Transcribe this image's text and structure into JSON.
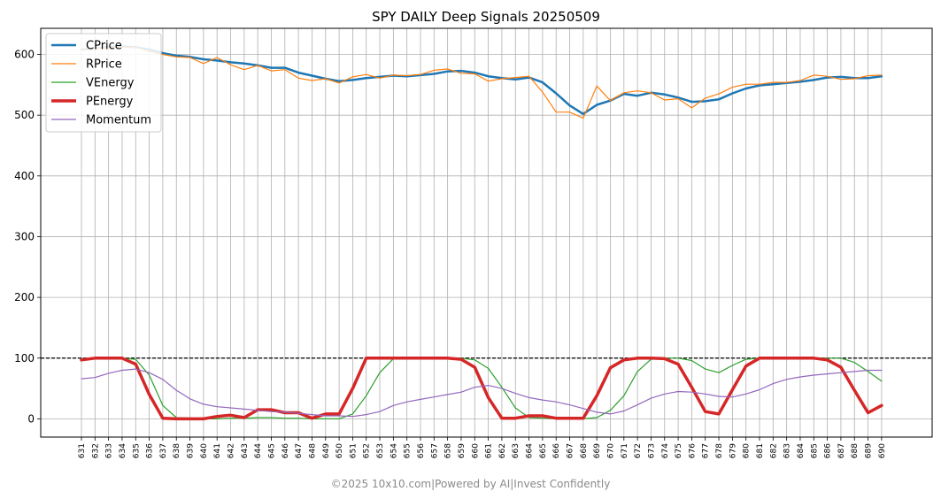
{
  "chart_data": {
    "type": "line",
    "title": "SPY DAILY Deep Signals 20250509",
    "xlabel": "",
    "ylabel": "",
    "ylim": [
      -30,
      643
    ],
    "yticks": [
      0,
      100,
      200,
      300,
      400,
      500,
      600
    ],
    "grid": true,
    "legend_position": "top-left",
    "reference_line": {
      "y": 100,
      "style": "dashed",
      "color": "#000000"
    },
    "x": [
      "631",
      "632",
      "633",
      "634",
      "635",
      "636",
      "637",
      "638",
      "639",
      "640",
      "641",
      "642",
      "643",
      "644",
      "645",
      "646",
      "647",
      "648",
      "649",
      "650",
      "651",
      "652",
      "653",
      "654",
      "655",
      "656",
      "657",
      "658",
      "659",
      "660",
      "661",
      "662",
      "663",
      "664",
      "665",
      "666",
      "667",
      "668",
      "669",
      "670",
      "671",
      "672",
      "673",
      "674",
      "675",
      "676",
      "677",
      "678",
      "679",
      "680",
      "681",
      "682",
      "683",
      "684",
      "685",
      "686",
      "687",
      "688",
      "689",
      "690"
    ],
    "series": [
      {
        "name": "CPrice",
        "color": "#1f77b4",
        "width": 2.5,
        "values": [
          608,
          610,
          612,
          613,
          612,
          608,
          602,
          598,
          596,
          592,
          590,
          587,
          585,
          582,
          578,
          578,
          570,
          565,
          560,
          556,
          558,
          561,
          563,
          565,
          564,
          566,
          568,
          572,
          573,
          570,
          564,
          561,
          559,
          562,
          554,
          536,
          516,
          502,
          517,
          524,
          535,
          532,
          537,
          534,
          529,
          522,
          523,
          526,
          536,
          544,
          549,
          551,
          553,
          555,
          558,
          562,
          563,
          561,
          561,
          564
        ]
      },
      {
        "name": "RPrice",
        "color": "#ff7f0e",
        "width": 1.2,
        "values": [
          608,
          610,
          611,
          612,
          612,
          605,
          600,
          596,
          595,
          585,
          595,
          583,
          575,
          582,
          573,
          575,
          561,
          557,
          560,
          553,
          563,
          567,
          561,
          566,
          565,
          567,
          574,
          576,
          569,
          568,
          556,
          560,
          562,
          564,
          538,
          505,
          505,
          495,
          548,
          524,
          537,
          540,
          537,
          525,
          527,
          512,
          528,
          535,
          546,
          551,
          551,
          554,
          554,
          557,
          566,
          564,
          559,
          560,
          565,
          566
        ]
      },
      {
        "name": "VEnergy",
        "color": "#2ca02c",
        "width": 1.2,
        "values": [
          97,
          99,
          100,
          100,
          98,
          72,
          22,
          2,
          1,
          0,
          0,
          1,
          1,
          2,
          2,
          1,
          1,
          0,
          0,
          0,
          8,
          38,
          76,
          99,
          100,
          100,
          100,
          100,
          100,
          97,
          83,
          52,
          18,
          2,
          1,
          0,
          0,
          0,
          2,
          14,
          38,
          78,
          98,
          100,
          100,
          96,
          82,
          76,
          88,
          98,
          100,
          100,
          100,
          100,
          100,
          100,
          100,
          93,
          78,
          62
        ]
      },
      {
        "name": "PEnergy",
        "color": "#d62728",
        "width": 3.5,
        "values": [
          97,
          100,
          100,
          100,
          90,
          40,
          1,
          0,
          0,
          0,
          4,
          6,
          2,
          15,
          15,
          10,
          10,
          1,
          8,
          8,
          50,
          100,
          100,
          100,
          100,
          100,
          100,
          100,
          98,
          85,
          35,
          1,
          1,
          5,
          5,
          1,
          1,
          1,
          38,
          84,
          97,
          100,
          100,
          99,
          90,
          52,
          12,
          8,
          48,
          87,
          100,
          100,
          100,
          100,
          100,
          97,
          85,
          47,
          10,
          22
        ]
      },
      {
        "name": "Momentum",
        "color": "#9467bd",
        "width": 1.2,
        "values": [
          66,
          68,
          75,
          80,
          82,
          76,
          65,
          47,
          33,
          24,
          20,
          18,
          16,
          14,
          12,
          11,
          9,
          7,
          5,
          5,
          4,
          7,
          12,
          22,
          28,
          32,
          36,
          40,
          44,
          52,
          55,
          50,
          42,
          35,
          31,
          28,
          23,
          17,
          11,
          8,
          13,
          23,
          34,
          41,
          45,
          44,
          41,
          37,
          36,
          41,
          48,
          58,
          65,
          69,
          72,
          74,
          76,
          78,
          80,
          80
        ]
      }
    ]
  },
  "footer": "©2025 10x10.com|Powered by AI|Invest Confidently"
}
